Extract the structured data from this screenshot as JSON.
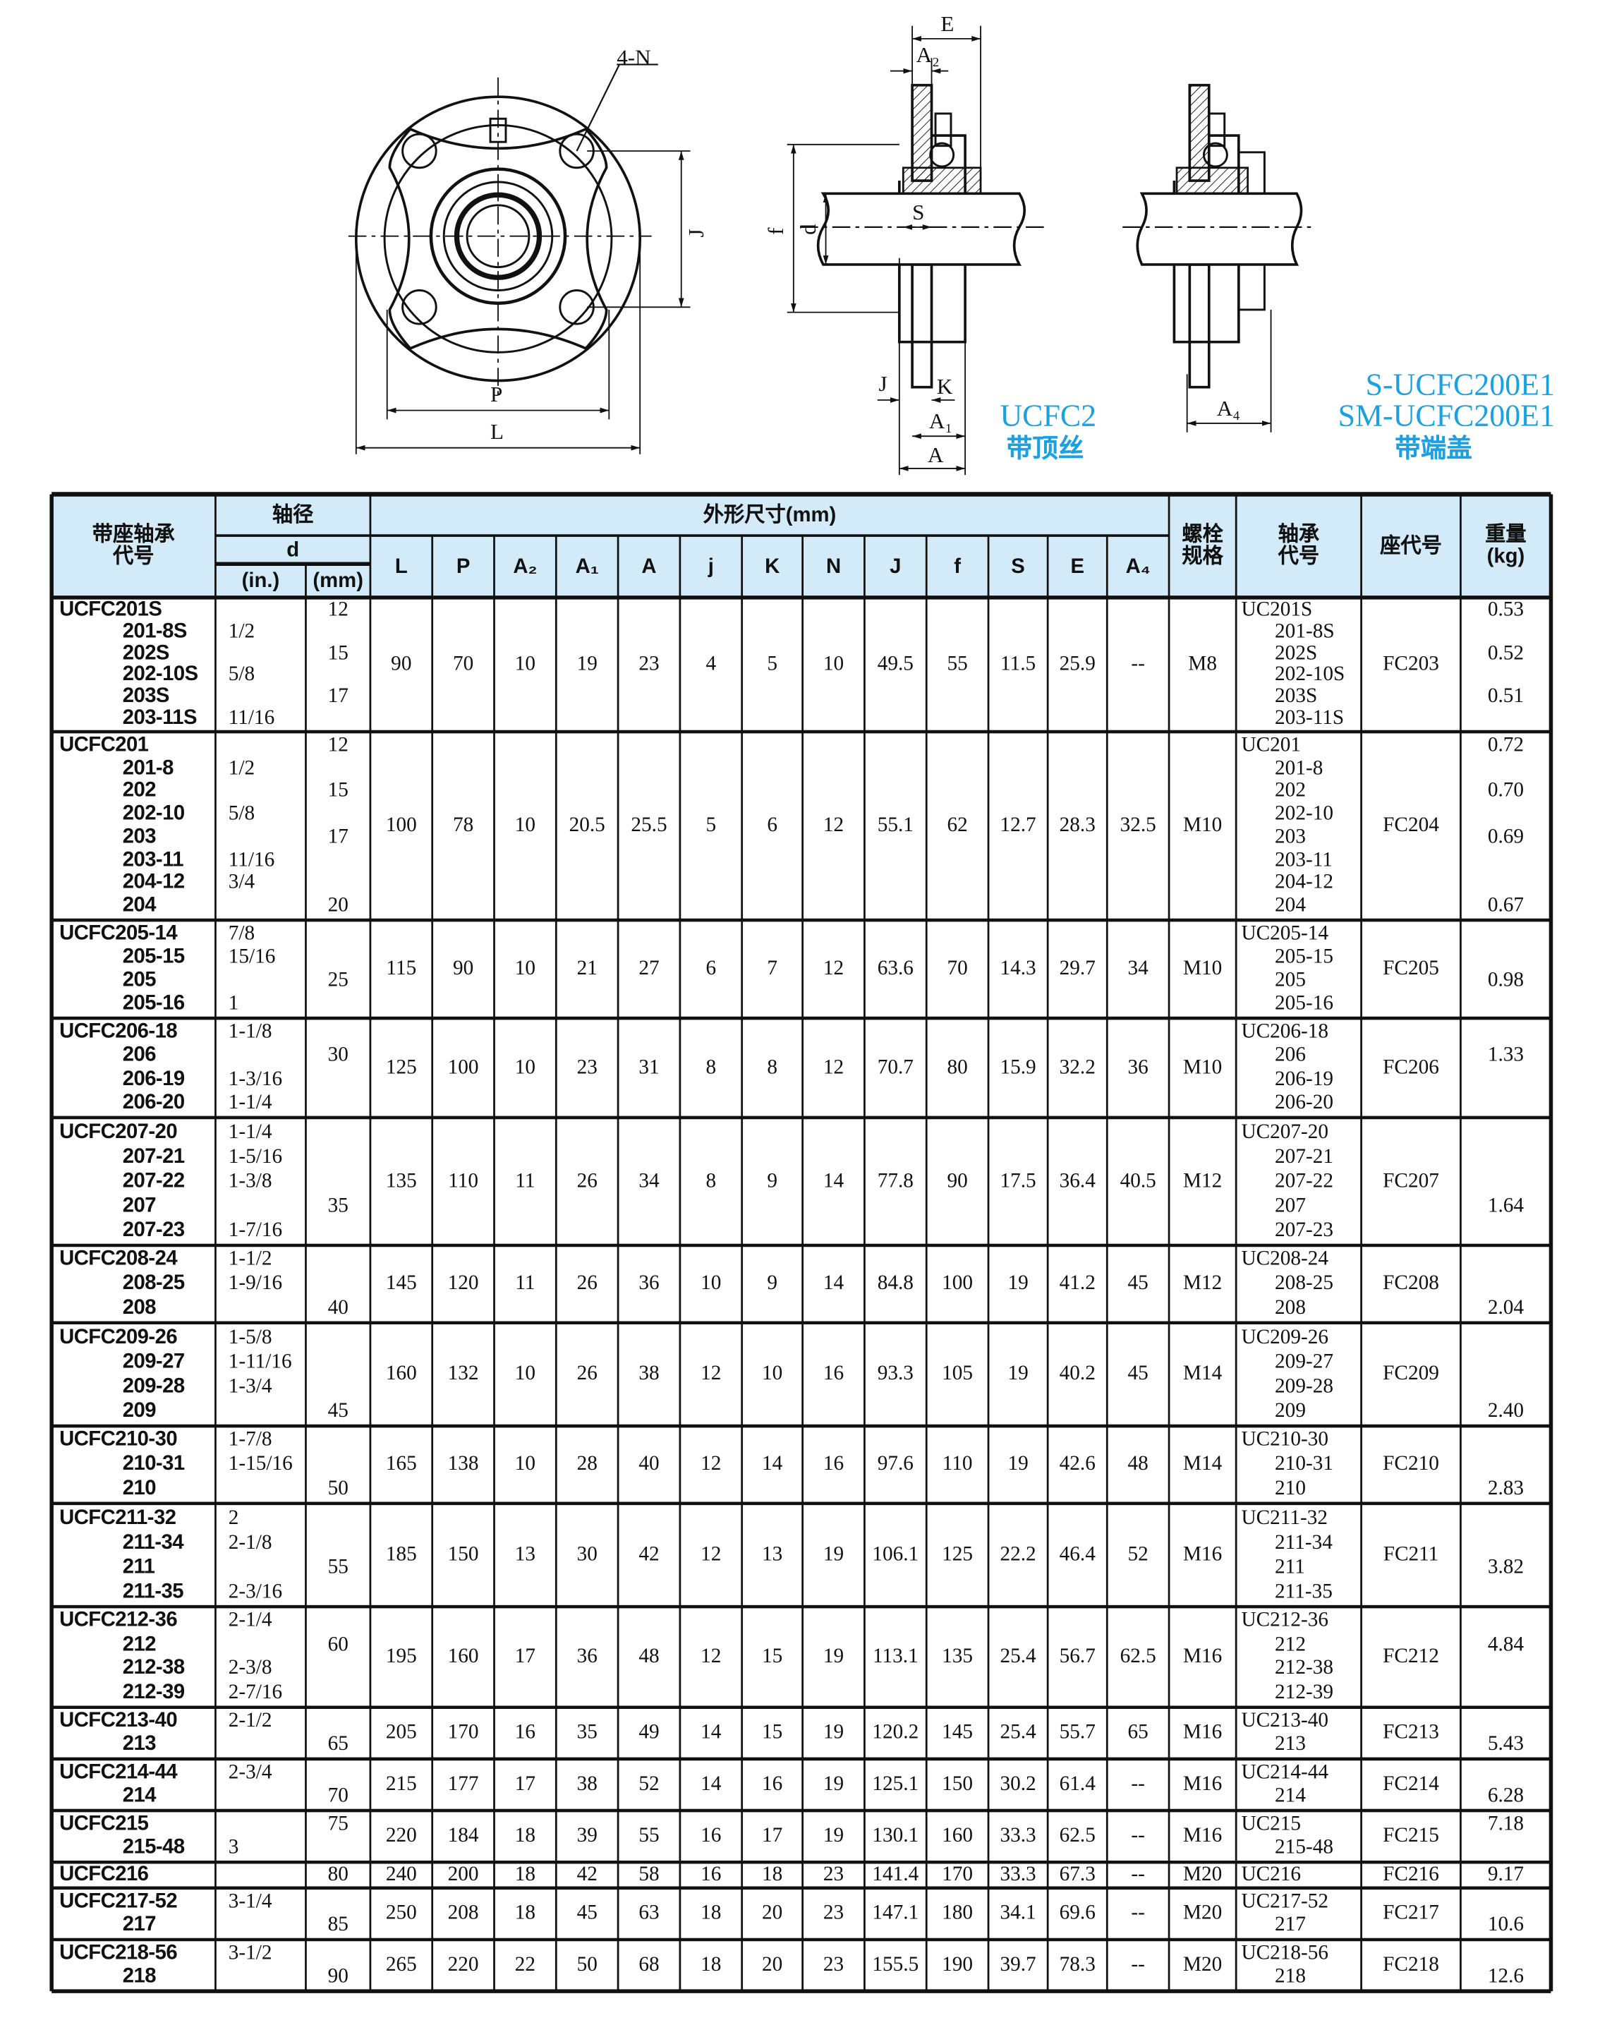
{
  "drawing_labels": {
    "front": {
      "holes": "4-N",
      "J": "J",
      "P": "P",
      "L": "L"
    },
    "side": {
      "E": "E",
      "A2": "A₂",
      "S": "S",
      "f": "f",
      "d": "d",
      "J": "J",
      "K": "K",
      "A1": "A₁",
      "A": "A"
    },
    "end_cover": {
      "A4": "A₄"
    }
  },
  "variant_labels": {
    "ucfc2": "UCFC2",
    "ucfc2_note": "带顶丝",
    "s_ucfc": "S-UCFC200E1",
    "sm_ucfc": "SM-UCFC200E1",
    "cover_note": "带端盖"
  },
  "colors": {
    "header_bg": "#d3ebf8",
    "variant_text": "#1ba1e2",
    "rule": "#111111"
  },
  "table": {
    "headers": {
      "unit_code": "带座轴承\n代号",
      "shaft_dia": "轴径",
      "d": "d",
      "inch": "(in.)",
      "mm": "(mm)",
      "dimensions": "外形尺寸(mm)",
      "dim_cols": [
        "L",
        "P",
        "A₂",
        "A₁",
        "A",
        "j",
        "K",
        "N",
        "J",
        "f",
        "S",
        "E",
        "A₄"
      ],
      "bolt": "螺栓\n规格",
      "bearing": "轴承\n代号",
      "housing": "座代号",
      "weight": "重量\n(kg)"
    },
    "rows": [
      {
        "units": [
          "UCFC201S",
          "201-8S",
          "202S",
          "202-10S",
          "203S",
          "203-11S"
        ],
        "inch": [
          "",
          "1/2",
          "",
          "5/8",
          "",
          "11/16"
        ],
        "mm": [
          "12",
          "",
          "15",
          "",
          "17",
          ""
        ],
        "dims": [
          "90",
          "70",
          "10",
          "19",
          "23",
          "4",
          "5",
          "10",
          "49.5",
          "55",
          "11.5",
          "25.9",
          "--"
        ],
        "bolt": "M8",
        "bearings": [
          "UC201S",
          "201-8S",
          "202S",
          "202-10S",
          "203S",
          "203-11S"
        ],
        "housing": "FC203",
        "weight": [
          "0.53",
          "",
          "0.52",
          "",
          "0.51",
          ""
        ]
      },
      {
        "units": [
          "UCFC201",
          "201-8",
          "202",
          "202-10",
          "203",
          "203-11",
          "204-12",
          "204"
        ],
        "inch": [
          "",
          "1/2",
          "",
          "5/8",
          "",
          "11/16",
          "3/4",
          ""
        ],
        "mm": [
          "12",
          "",
          "15",
          "",
          "17",
          "",
          "",
          "20"
        ],
        "dims": [
          "100",
          "78",
          "10",
          "20.5",
          "25.5",
          "5",
          "6",
          "12",
          "55.1",
          "62",
          "12.7",
          "28.3",
          "32.5"
        ],
        "bolt": "M10",
        "bearings": [
          "UC201",
          "201-8",
          "202",
          "202-10",
          "203",
          "203-11",
          "204-12",
          "204"
        ],
        "housing": "FC204",
        "weight": [
          "0.72",
          "",
          "0.70",
          "",
          "0.69",
          "",
          "",
          "0.67"
        ]
      },
      {
        "units": [
          "UCFC205-14",
          "205-15",
          "205",
          "205-16"
        ],
        "inch": [
          "7/8",
          "15/16",
          "",
          "1"
        ],
        "mm": [
          "",
          "",
          "25",
          ""
        ],
        "dims": [
          "115",
          "90",
          "10",
          "21",
          "27",
          "6",
          "7",
          "12",
          "63.6",
          "70",
          "14.3",
          "29.7",
          "34"
        ],
        "bolt": "M10",
        "bearings": [
          "UC205-14",
          "205-15",
          "205",
          "205-16"
        ],
        "housing": "FC205",
        "weight": [
          "",
          "",
          "0.98",
          ""
        ]
      },
      {
        "units": [
          "UCFC206-18",
          "206",
          "206-19",
          "206-20"
        ],
        "inch": [
          "1-1/8",
          "",
          "1-3/16",
          "1-1/4"
        ],
        "mm": [
          "",
          "30",
          "",
          ""
        ],
        "dims": [
          "125",
          "100",
          "10",
          "23",
          "31",
          "8",
          "8",
          "12",
          "70.7",
          "80",
          "15.9",
          "32.2",
          "36"
        ],
        "bolt": "M10",
        "bearings": [
          "UC206-18",
          "206",
          "206-19",
          "206-20"
        ],
        "housing": "FC206",
        "weight": [
          "",
          "1.33",
          "",
          ""
        ]
      },
      {
        "units": [
          "UCFC207-20",
          "207-21",
          "207-22",
          "207",
          "207-23"
        ],
        "inch": [
          "1-1/4",
          "1-5/16",
          "1-3/8",
          "",
          "1-7/16"
        ],
        "mm": [
          "",
          "",
          "",
          "35",
          ""
        ],
        "dims": [
          "135",
          "110",
          "11",
          "26",
          "34",
          "8",
          "9",
          "14",
          "77.8",
          "90",
          "17.5",
          "36.4",
          "40.5"
        ],
        "bolt": "M12",
        "bearings": [
          "UC207-20",
          "207-21",
          "207-22",
          "207",
          "207-23"
        ],
        "housing": "FC207",
        "weight": [
          "",
          "",
          "",
          "1.64",
          ""
        ]
      },
      {
        "units": [
          "UCFC208-24",
          "208-25",
          "208"
        ],
        "inch": [
          "1-1/2",
          "1-9/16",
          ""
        ],
        "mm": [
          "",
          "",
          "40"
        ],
        "dims": [
          "145",
          "120",
          "11",
          "26",
          "36",
          "10",
          "9",
          "14",
          "84.8",
          "100",
          "19",
          "41.2",
          "45"
        ],
        "bolt": "M12",
        "bearings": [
          "UC208-24",
          "208-25",
          "208"
        ],
        "housing": "FC208",
        "weight": [
          "",
          "",
          "2.04"
        ]
      },
      {
        "units": [
          "UCFC209-26",
          "209-27",
          "209-28",
          "209"
        ],
        "inch": [
          "1-5/8",
          "1-11/16",
          "1-3/4",
          ""
        ],
        "mm": [
          "",
          "",
          "",
          "45"
        ],
        "dims": [
          "160",
          "132",
          "10",
          "26",
          "38",
          "12",
          "10",
          "16",
          "93.3",
          "105",
          "19",
          "40.2",
          "45"
        ],
        "bolt": "M14",
        "bearings": [
          "UC209-26",
          "209-27",
          "209-28",
          "209"
        ],
        "housing": "FC209",
        "weight": [
          "",
          "",
          "",
          "2.40"
        ]
      },
      {
        "units": [
          "UCFC210-30",
          "210-31",
          "210"
        ],
        "inch": [
          "1-7/8",
          "1-15/16",
          ""
        ],
        "mm": [
          "",
          "",
          "50"
        ],
        "dims": [
          "165",
          "138",
          "10",
          "28",
          "40",
          "12",
          "14",
          "16",
          "97.6",
          "110",
          "19",
          "42.6",
          "48"
        ],
        "bolt": "M14",
        "bearings": [
          "UC210-30",
          "210-31",
          "210"
        ],
        "housing": "FC210",
        "weight": [
          "",
          "",
          "2.83"
        ]
      },
      {
        "units": [
          "UCFC211-32",
          "211-34",
          "211",
          "211-35"
        ],
        "inch": [
          "2",
          "2-1/8",
          "",
          "2-3/16"
        ],
        "mm": [
          "",
          "",
          "55",
          ""
        ],
        "dims": [
          "185",
          "150",
          "13",
          "30",
          "42",
          "12",
          "13",
          "19",
          "106.1",
          "125",
          "22.2",
          "46.4",
          "52"
        ],
        "bolt": "M16",
        "bearings": [
          "UC211-32",
          "211-34",
          "211",
          "211-35"
        ],
        "housing": "FC211",
        "weight": [
          "",
          "",
          "3.82",
          ""
        ]
      },
      {
        "units": [
          "UCFC212-36",
          "212",
          "212-38",
          "212-39"
        ],
        "inch": [
          "2-1/4",
          "",
          "2-3/8",
          "2-7/16"
        ],
        "mm": [
          "",
          "60",
          "",
          ""
        ],
        "dims": [
          "195",
          "160",
          "17",
          "36",
          "48",
          "12",
          "15",
          "19",
          "113.1",
          "135",
          "25.4",
          "56.7",
          "62.5"
        ],
        "bolt": "M16",
        "bearings": [
          "UC212-36",
          "212",
          "212-38",
          "212-39"
        ],
        "housing": "FC212",
        "weight": [
          "",
          "4.84",
          "",
          ""
        ]
      },
      {
        "units": [
          "UCFC213-40",
          "213"
        ],
        "inch": [
          "2-1/2",
          ""
        ],
        "mm": [
          "",
          "65"
        ],
        "dims": [
          "205",
          "170",
          "16",
          "35",
          "49",
          "14",
          "15",
          "19",
          "120.2",
          "145",
          "25.4",
          "55.7",
          "65"
        ],
        "bolt": "M16",
        "bearings": [
          "UC213-40",
          "213"
        ],
        "housing": "FC213",
        "weight": [
          "",
          "5.43"
        ]
      },
      {
        "units": [
          "UCFC214-44",
          "214"
        ],
        "inch": [
          "2-3/4",
          ""
        ],
        "mm": [
          "",
          "70"
        ],
        "dims": [
          "215",
          "177",
          "17",
          "38",
          "52",
          "14",
          "16",
          "19",
          "125.1",
          "150",
          "30.2",
          "61.4",
          "--"
        ],
        "bolt": "M16",
        "bearings": [
          "UC214-44",
          "214"
        ],
        "housing": "FC214",
        "weight": [
          "",
          "6.28"
        ]
      },
      {
        "units": [
          "UCFC215",
          "215-48"
        ],
        "inch": [
          "",
          "3"
        ],
        "mm": [
          "75",
          ""
        ],
        "dims": [
          "220",
          "184",
          "18",
          "39",
          "55",
          "16",
          "17",
          "19",
          "130.1",
          "160",
          "33.3",
          "62.5",
          "--"
        ],
        "bolt": "M16",
        "bearings": [
          "UC215",
          "215-48"
        ],
        "housing": "FC215",
        "weight": [
          "7.18",
          ""
        ]
      },
      {
        "units": [
          "UCFC216"
        ],
        "inch": [
          ""
        ],
        "mm": [
          "80"
        ],
        "dims": [
          "240",
          "200",
          "18",
          "42",
          "58",
          "16",
          "18",
          "23",
          "141.4",
          "170",
          "33.3",
          "67.3",
          "--"
        ],
        "bolt": "M20",
        "bearings": [
          "UC216"
        ],
        "housing": "FC216",
        "weight": [
          "9.17"
        ]
      },
      {
        "units": [
          "UCFC217-52",
          "217"
        ],
        "inch": [
          "3-1/4",
          ""
        ],
        "mm": [
          "",
          "85"
        ],
        "dims": [
          "250",
          "208",
          "18",
          "45",
          "63",
          "18",
          "20",
          "23",
          "147.1",
          "180",
          "34.1",
          "69.6",
          "--"
        ],
        "bolt": "M20",
        "bearings": [
          "UC217-52",
          "217"
        ],
        "housing": "FC217",
        "weight": [
          "",
          "10.6"
        ]
      },
      {
        "units": [
          "UCFC218-56",
          "218"
        ],
        "inch": [
          "3-1/2",
          ""
        ],
        "mm": [
          "",
          "90"
        ],
        "dims": [
          "265",
          "220",
          "22",
          "50",
          "68",
          "18",
          "20",
          "23",
          "155.5",
          "190",
          "39.7",
          "78.3",
          "--"
        ],
        "bolt": "M20",
        "bearings": [
          "UC218-56",
          "218"
        ],
        "housing": "FC218",
        "weight": [
          "",
          "12.6"
        ]
      }
    ]
  }
}
